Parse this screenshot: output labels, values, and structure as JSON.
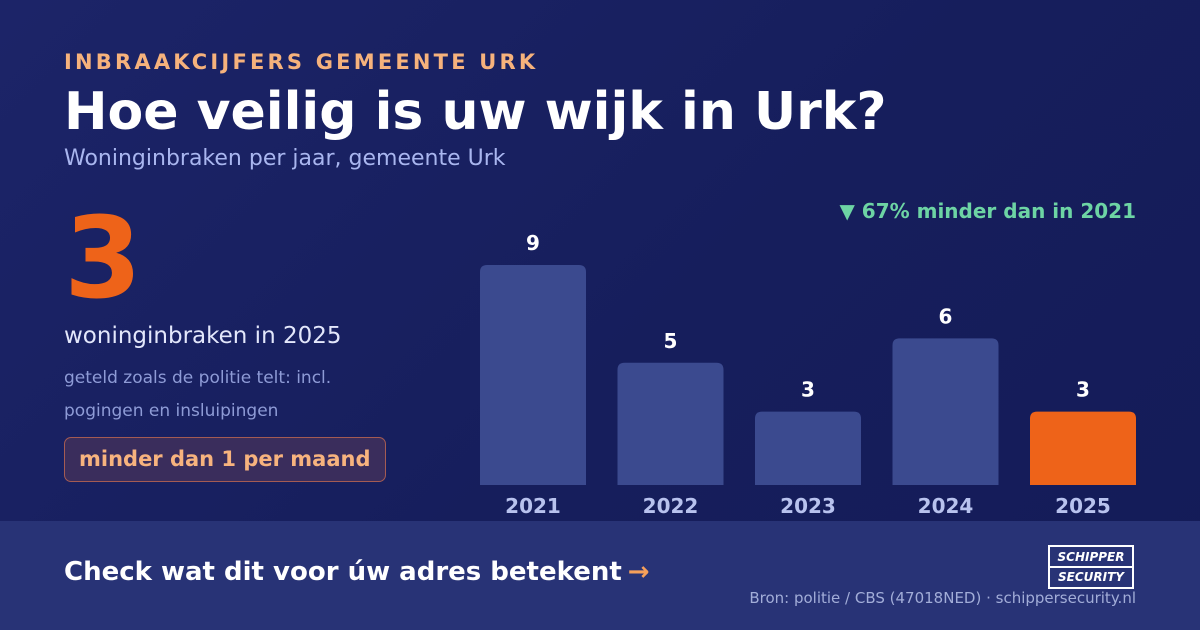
{
  "header": {
    "eyebrow": "INBRAAKCIJFERS GEMEENTE URK",
    "title": "Hoe veilig is uw wijk in Urk?",
    "subtitle": "Woninginbraken per jaar, gemeente Urk"
  },
  "highlight": {
    "number": "3",
    "caption": "woninginbraken in 2025",
    "note": "geteld zoals de politie telt: incl. pogingen en insluipingen",
    "pill": "minder dan 1 per maand"
  },
  "change_label": "▼ 67% minder dan in 2021",
  "colors": {
    "bar": "#3b4a8f",
    "highlight_bar": "#ee6319",
    "accent_orange": "#ee6319",
    "accent_green": "#6dd4a4"
  },
  "chart_data": {
    "type": "bar",
    "categories": [
      "2021",
      "2022",
      "2023",
      "2024",
      "2025"
    ],
    "values": [
      9,
      5,
      3,
      6,
      3
    ],
    "highlight_index": 4,
    "title": "",
    "xlabel": "",
    "ylabel": "",
    "ylim": [
      0,
      9
    ],
    "grid": false
  },
  "footer": {
    "cta": "Check wat dit voor úw adres betekent",
    "cta_arrow": "→",
    "logo_line1": "SCHIPPER",
    "logo_line2": "SECURITY",
    "source": "Bron: politie / CBS (47018NED) · schippersecurity.nl"
  }
}
